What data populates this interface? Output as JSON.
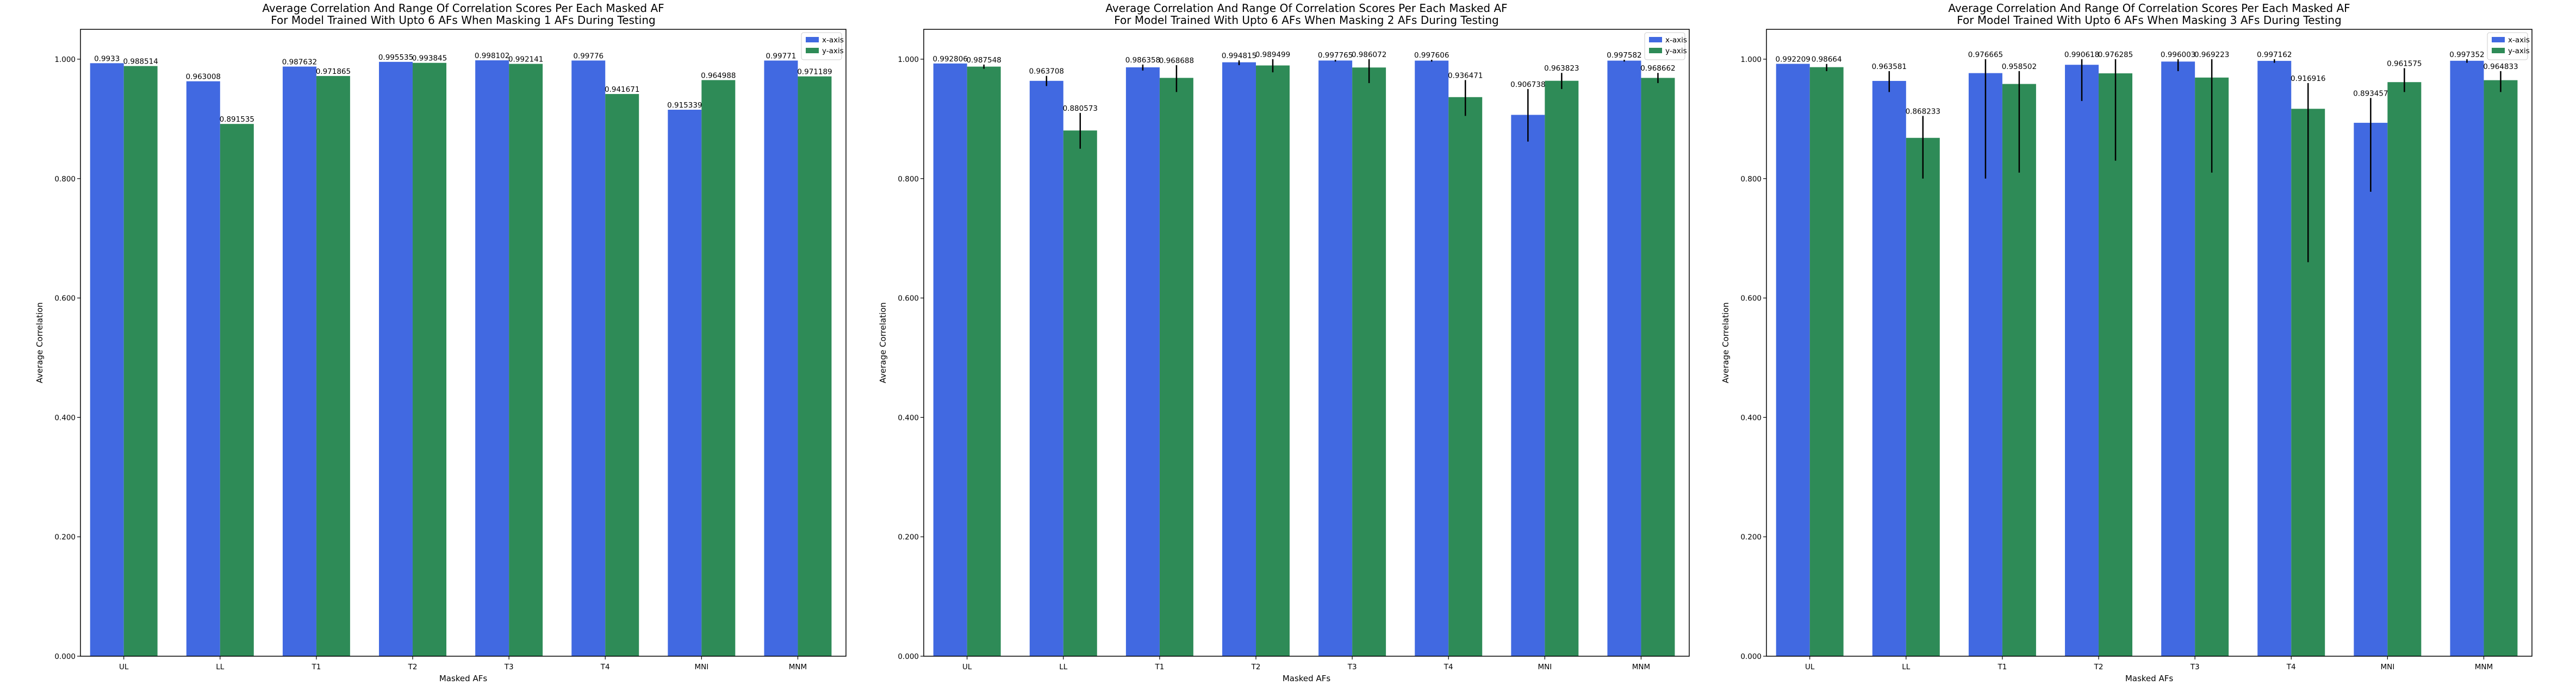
{
  "chart_data": [
    {
      "type": "bar",
      "title": "Average Correlation And Range Of Correlation Scores Per Each Masked AF",
      "subtitle": "For Model Trained With Upto 6 AFs When Masking 1 AFs During Testing",
      "xlabel": "Masked AFs",
      "ylabel": "Average Correlation",
      "ylim": [
        0,
        1.05
      ],
      "yticks": [
        "0.000",
        "0.200",
        "0.400",
        "0.600",
        "0.800",
        "1.000"
      ],
      "legend_position": "top-right",
      "grid": false,
      "categories": [
        "UL",
        "LL",
        "T1",
        "T2",
        "T3",
        "T4",
        "MNI",
        "MNM"
      ],
      "series": [
        {
          "name": "x-axis",
          "color": "#4169E1",
          "values": [
            0.9933,
            0.963008,
            0.987632,
            0.995535,
            0.998102,
            0.99776,
            0.915339,
            0.99771
          ],
          "labels": [
            "0.9933",
            "0.963008",
            "0.987632",
            "0.995535",
            "0.998102",
            "0.99776",
            "0.915339",
            "0.99771"
          ],
          "err_low": [
            0.9933,
            0.963008,
            0.987632,
            0.995535,
            0.998102,
            0.99776,
            0.915339,
            0.99771
          ],
          "err_high": [
            0.9933,
            0.963008,
            0.987632,
            0.995535,
            0.998102,
            0.99776,
            0.915339,
            0.99771
          ]
        },
        {
          "name": "y-axis",
          "color": "#2E8B57",
          "values": [
            0.988514,
            0.891535,
            0.971865,
            0.993845,
            0.992141,
            0.941671,
            0.964988,
            0.971189
          ],
          "labels": [
            "0.988514",
            "0.891535",
            "0.971865",
            "0.993845",
            "0.992141",
            "0.941671",
            "0.964988",
            "0.971189"
          ],
          "err_low": [
            0.988514,
            0.891535,
            0.971865,
            0.993845,
            0.992141,
            0.941671,
            0.964988,
            0.971189
          ],
          "err_high": [
            0.988514,
            0.891535,
            0.971865,
            0.993845,
            0.992141,
            0.941671,
            0.964988,
            0.971189
          ]
        }
      ]
    },
    {
      "type": "bar",
      "title": "Average Correlation And Range Of Correlation Scores Per Each Masked AF",
      "subtitle": "For Model Trained With Upto 6 AFs When Masking 2 AFs During Testing",
      "xlabel": "Masked AFs",
      "ylabel": "Average Correlation",
      "ylim": [
        0,
        1.05
      ],
      "yticks": [
        "0.000",
        "0.200",
        "0.400",
        "0.600",
        "0.800",
        "1.000"
      ],
      "legend_position": "top-right",
      "grid": false,
      "categories": [
        "UL",
        "LL",
        "T1",
        "T2",
        "T3",
        "T4",
        "MNI",
        "MNM"
      ],
      "series": [
        {
          "name": "x-axis",
          "color": "#4169E1",
          "values": [
            0.992806,
            0.963708,
            0.986358,
            0.994815,
            0.997765,
            0.997606,
            0.906738,
            0.997582
          ],
          "labels": [
            "0.992806",
            "0.963708",
            "0.986358",
            "0.994815",
            "0.997765",
            "0.997606",
            "0.906738",
            "0.997582"
          ],
          "err_low": [
            0.992806,
            0.955,
            0.981,
            0.99,
            0.996,
            0.996,
            0.862,
            0.996
          ],
          "err_high": [
            0.992806,
            0.972,
            0.991,
            0.998,
            0.999,
            0.999,
            0.95,
            0.999
          ]
        },
        {
          "name": "y-axis",
          "color": "#2E8B57",
          "values": [
            0.987548,
            0.880573,
            0.968688,
            0.989499,
            0.986072,
            0.936471,
            0.963823,
            0.968662
          ],
          "labels": [
            "0.987548",
            "0.880573",
            "0.968688",
            "0.989499",
            "0.986072",
            "0.936471",
            "0.963823",
            "0.968662"
          ],
          "err_low": [
            0.984,
            0.85,
            0.945,
            0.978,
            0.96,
            0.905,
            0.95,
            0.96
          ],
          "err_high": [
            0.991,
            0.91,
            0.99,
            1.0,
            1.0,
            0.965,
            0.977,
            0.977
          ]
        }
      ]
    },
    {
      "type": "bar",
      "title": "Average Correlation And Range Of Correlation Scores Per Each Masked AF",
      "subtitle": "For Model Trained With Upto 6 AFs When Masking 3 AFs During Testing",
      "xlabel": "Masked AFs",
      "ylabel": "Average Correlation",
      "ylim": [
        0,
        1.05
      ],
      "yticks": [
        "0.000",
        "0.200",
        "0.400",
        "0.600",
        "0.800",
        "1.000"
      ],
      "legend_position": "top-right",
      "grid": false,
      "categories": [
        "UL",
        "LL",
        "T1",
        "T2",
        "T3",
        "T4",
        "MNI",
        "MNM"
      ],
      "series": [
        {
          "name": "x-axis",
          "color": "#4169E1",
          "values": [
            0.992209,
            0.963581,
            0.976665,
            0.990618,
            0.996003,
            0.997162,
            0.893457,
            0.997352
          ],
          "labels": [
            "0.992209",
            "0.963581",
            "0.976665",
            "0.990618",
            "0.996003",
            "0.997162",
            "0.893457",
            "0.997352"
          ],
          "err_low": [
            0.992209,
            0.945,
            0.8,
            0.93,
            0.98,
            0.994,
            0.778,
            0.994
          ],
          "err_high": [
            0.992209,
            0.98,
            1.0,
            1.0,
            1.0,
            1.0,
            0.935,
            1.0
          ]
        },
        {
          "name": "y-axis",
          "color": "#2E8B57",
          "values": [
            0.98664,
            0.868233,
            0.958502,
            0.976285,
            0.969223,
            0.916916,
            0.961575,
            0.964833
          ],
          "labels": [
            "0.98664",
            "0.868233",
            "0.958502",
            "0.976285",
            "0.969223",
            "0.916916",
            "0.961575",
            "0.964833"
          ],
          "err_low": [
            0.98,
            0.8,
            0.81,
            0.83,
            0.81,
            0.66,
            0.945,
            0.945
          ],
          "err_high": [
            0.992,
            0.905,
            0.98,
            1.0,
            1.0,
            0.96,
            0.985,
            0.98
          ]
        }
      ]
    }
  ]
}
